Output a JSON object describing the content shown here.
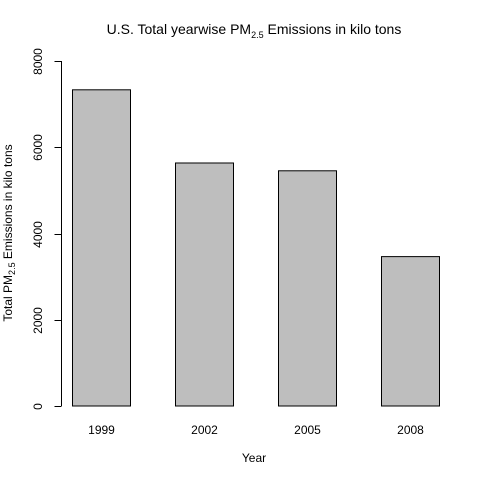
{
  "chart_data": {
    "type": "bar",
    "title": {
      "prefix": "U.S. Total yearwise PM",
      "subscript": "2.5",
      "suffix": " Emissions in kilo tons"
    },
    "xlabel": "Year",
    "ylabel": {
      "prefix": "Total PM",
      "subscript": "2.5",
      "suffix": " Emissions in kilo tons"
    },
    "categories": [
      "1999",
      "2002",
      "2005",
      "2008"
    ],
    "values": [
      7332,
      5635,
      5454,
      3464
    ],
    "ylim": [
      0,
      8000
    ],
    "yticks": [
      0,
      2000,
      4000,
      6000,
      8000
    ],
    "grid": false,
    "bar_fill": "#bebebe",
    "bar_stroke": "#000000"
  }
}
